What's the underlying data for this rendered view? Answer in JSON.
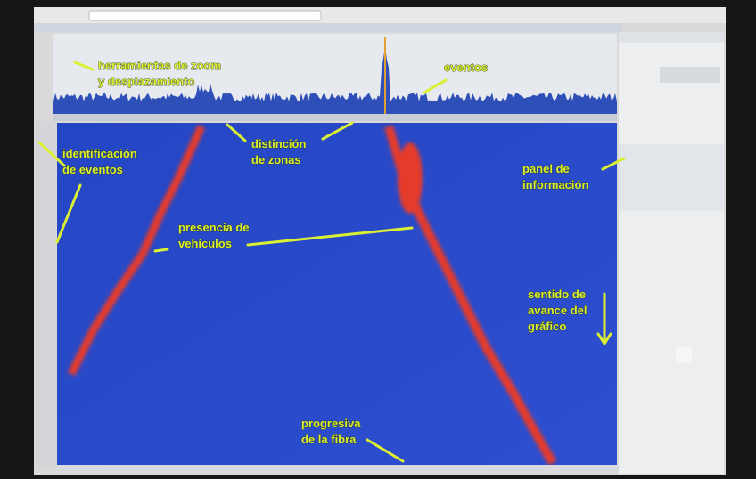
{
  "annotations": [
    {
      "lines": [
        "herramientas de zoom",
        "y desplazamiento"
      ]
    },
    {
      "lines": [
        "eventos"
      ]
    },
    {
      "lines": [
        "distinción",
        "de zonas"
      ]
    },
    {
      "lines": [
        "identificación",
        "de eventos"
      ]
    },
    {
      "lines": [
        "presencia de",
        "vehículos"
      ]
    },
    {
      "lines": [
        "panel de",
        "información"
      ]
    },
    {
      "lines": [
        "sentido de",
        "avance del",
        "gráfico"
      ]
    },
    {
      "lines": [
        "progresiva",
        "de la fibra"
      ]
    }
  ]
}
